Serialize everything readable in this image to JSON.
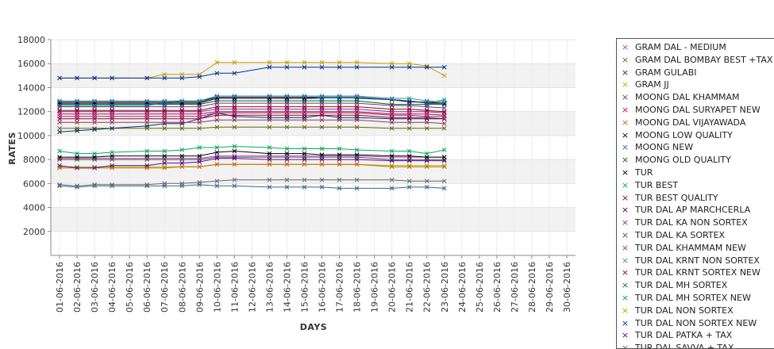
{
  "chart_data": {
    "type": "line",
    "xlabel": "DAYS",
    "ylabel": "RATES",
    "ylim": [
      0,
      18000
    ],
    "yticks": [
      2000,
      4000,
      6000,
      8000,
      10000,
      12000,
      14000,
      16000,
      18000
    ],
    "grid": "alternating horizontal bands",
    "legend_position": "right",
    "categories": [
      "01-06-2016",
      "02-06-2016",
      "03-06-2016",
      "04-06-2016",
      "05-06-2016",
      "06-06-2016",
      "07-06-2016",
      "08-06-2016",
      "09-06-2016",
      "10-06-2016",
      "11-06-2016",
      "12-06-2016",
      "13-06-2016",
      "14-06-2016",
      "15-06-2016",
      "16-06-2016",
      "17-06-2016",
      "18-06-2016",
      "19-06-2016",
      "20-06-2016",
      "21-06-2016",
      "22-06-2016",
      "23-06-2016",
      "24-06-2016",
      "25-06-2016",
      "26-06-2016",
      "27-06-2016",
      "28-06-2016",
      "29-06-2016",
      "30-06-2016"
    ],
    "series": [
      {
        "name": "GRAM DAL - MEDIUM",
        "color": "#cc33cc",
        "values": [
          8100,
          8100,
          8100,
          8100,
          null,
          8100,
          8100,
          8100,
          8100,
          8300,
          8300,
          null,
          8300,
          8300,
          8300,
          8300,
          8300,
          8300,
          null,
          8200,
          8200,
          8200,
          8200,
          null,
          null,
          null,
          null,
          null,
          null,
          null
        ]
      },
      {
        "name": "GRAM DAL BOMBAY BEST +TAX",
        "color": "#666600",
        "values": [
          10600,
          10600,
          10600,
          10600,
          null,
          10600,
          10600,
          10600,
          10600,
          10700,
          10700,
          null,
          10700,
          10700,
          10700,
          10700,
          10700,
          10700,
          null,
          10600,
          10600,
          10600,
          10600,
          null,
          null,
          null,
          null,
          null,
          null,
          null
        ]
      },
      {
        "name": "GRAM GULABI",
        "color": "#003366",
        "values": [
          10300,
          10400,
          10500,
          10600,
          null,
          10800,
          11000,
          11000,
          11400,
          11900,
          11600,
          null,
          11500,
          11500,
          11500,
          11700,
          11500,
          11500,
          null,
          11400,
          11400,
          11400,
          11400,
          null,
          null,
          null,
          null,
          null,
          null,
          null
        ]
      },
      {
        "name": "GRAM JJ",
        "color": "#99cc00",
        "values": [
          7400,
          7400,
          7400,
          7400,
          null,
          7400,
          7400,
          7400,
          7400,
          7600,
          7600,
          null,
          7600,
          7600,
          7600,
          7600,
          7600,
          7600,
          null,
          7500,
          7500,
          7500,
          7500,
          null,
          null,
          null,
          null,
          null,
          null,
          null
        ]
      },
      {
        "name": "MOONG DAL KHAMMAM",
        "color": "#663399",
        "values": [
          12000,
          12000,
          12000,
          12000,
          null,
          12000,
          12000,
          12000,
          12000,
          12200,
          12200,
          null,
          12200,
          12200,
          12200,
          12200,
          12200,
          12200,
          null,
          12000,
          12000,
          12000,
          11900,
          null,
          null,
          null,
          null,
          null,
          null,
          null
        ]
      },
      {
        "name": "MOONG DAL SURYAPET NEW",
        "color": "#cc0066",
        "values": [
          11800,
          11800,
          11800,
          11800,
          null,
          11800,
          11800,
          11800,
          11800,
          12000,
          12000,
          null,
          12000,
          12000,
          12000,
          12000,
          12000,
          12000,
          null,
          11800,
          11800,
          11800,
          11700,
          null,
          null,
          null,
          null,
          null,
          null,
          null
        ]
      },
      {
        "name": "MOONG DAL VIJAYAWADA",
        "color": "#cc6600",
        "values": [
          7300,
          7300,
          7300,
          7300,
          null,
          7300,
          7300,
          7400,
          7400,
          7600,
          7600,
          null,
          7600,
          7600,
          7600,
          7600,
          7600,
          7600,
          null,
          7400,
          7400,
          7400,
          7400,
          null,
          null,
          null,
          null,
          null,
          null,
          null
        ]
      },
      {
        "name": "MOONG LOW QUALITY",
        "color": "#000000",
        "values": [
          8200,
          8200,
          8200,
          8300,
          null,
          8300,
          8300,
          8300,
          8300,
          8600,
          8700,
          null,
          8500,
          8500,
          8500,
          8400,
          8400,
          8400,
          null,
          8300,
          8300,
          8200,
          8200,
          null,
          null,
          null,
          null,
          null,
          null,
          null
        ]
      },
      {
        "name": "MOONG NEW",
        "color": "#336699",
        "values": [
          5800,
          5700,
          5800,
          5800,
          null,
          5800,
          5800,
          5800,
          5900,
          5800,
          5800,
          null,
          5700,
          5700,
          5700,
          5700,
          5600,
          5600,
          null,
          5600,
          5700,
          5700,
          5600,
          null,
          null,
          null,
          null,
          null,
          null,
          null
        ]
      },
      {
        "name": "MOONG OLD QUALITY",
        "color": "#006600",
        "values": [
          12600,
          12600,
          12600,
          12600,
          null,
          12600,
          12600,
          12600,
          12600,
          12900,
          12900,
          null,
          12900,
          12900,
          12900,
          12900,
          12900,
          12900,
          null,
          12600,
          12600,
          12600,
          12600,
          null,
          null,
          null,
          null,
          null,
          null,
          null
        ]
      },
      {
        "name": "TUR",
        "color": "#000000",
        "values": [
          12700,
          12700,
          12700,
          12700,
          null,
          12700,
          12700,
          12700,
          12700,
          13100,
          13100,
          null,
          13100,
          13100,
          13100,
          13100,
          13100,
          13100,
          null,
          13000,
          12900,
          12700,
          12700,
          null,
          null,
          null,
          null,
          null,
          null,
          null
        ]
      },
      {
        "name": "TUR BEST",
        "color": "#009999",
        "values": [
          12500,
          12500,
          12500,
          12500,
          null,
          12500,
          12700,
          12900,
          12900,
          13200,
          13200,
          null,
          13200,
          13200,
          13200,
          13100,
          13100,
          13100,
          null,
          13000,
          12900,
          12700,
          13000,
          null,
          null,
          null,
          null,
          null,
          null,
          null
        ]
      },
      {
        "name": "TUR BEST QUALITY",
        "color": "#990033",
        "values": [
          11400,
          11400,
          11400,
          11400,
          null,
          11400,
          11400,
          11400,
          11400,
          11700,
          11700,
          null,
          11700,
          11700,
          11700,
          11700,
          11700,
          11700,
          null,
          11500,
          11500,
          11500,
          11400,
          null,
          null,
          null,
          null,
          null,
          null,
          null
        ]
      },
      {
        "name": "TUR DAL AP MARCHCERLA",
        "color": "#330066",
        "values": [
          12800,
          12800,
          12800,
          12800,
          null,
          12800,
          12800,
          12800,
          12800,
          13200,
          13200,
          null,
          13200,
          13200,
          13200,
          13200,
          13200,
          13200,
          null,
          13000,
          12800,
          12800,
          12700,
          null,
          null,
          null,
          null,
          null,
          null,
          null
        ]
      },
      {
        "name": "TUR DAL KA NON SORTEX",
        "color": "#993366",
        "values": [
          11100,
          11100,
          11100,
          11100,
          null,
          11100,
          11100,
          11100,
          11100,
          11300,
          11300,
          null,
          11300,
          11300,
          11300,
          11300,
          11300,
          11300,
          null,
          11100,
          11100,
          11100,
          11000,
          null,
          null,
          null,
          null,
          null,
          null,
          null
        ]
      },
      {
        "name": "TUR DAL KA SORTEX",
        "color": "#663399",
        "values": [
          12400,
          12400,
          12400,
          12400,
          null,
          12400,
          12400,
          12400,
          12400,
          12700,
          12700,
          null,
          12700,
          12700,
          12700,
          12700,
          12700,
          12700,
          null,
          12500,
          12500,
          12400,
          12300,
          null,
          null,
          null,
          null,
          null,
          null,
          null
        ]
      },
      {
        "name": "TUR DAL KHAMMAM NEW",
        "color": "#993366",
        "values": [
          11600,
          11600,
          11600,
          11600,
          null,
          11600,
          11600,
          11600,
          11600,
          11900,
          11900,
          null,
          11900,
          11900,
          11900,
          11900,
          11900,
          11900,
          null,
          11700,
          11700,
          11600,
          11600,
          null,
          null,
          null,
          null,
          null,
          null,
          null
        ]
      },
      {
        "name": "TUR DAL KRNT NON SORTEX",
        "color": "#339999",
        "values": [
          12900,
          12900,
          12900,
          12900,
          null,
          12900,
          12900,
          12900,
          12900,
          13300,
          13300,
          null,
          13300,
          13300,
          13300,
          13300,
          13300,
          13300,
          null,
          13100,
          13100,
          12900,
          12800,
          null,
          null,
          null,
          null,
          null,
          null,
          null
        ]
      },
      {
        "name": "TUR DAL KRNT SORTEX NEW",
        "color": "#990000",
        "values": [
          12100,
          12100,
          12100,
          12100,
          null,
          12100,
          12100,
          12100,
          12100,
          12400,
          12400,
          null,
          12400,
          12400,
          12400,
          12400,
          12400,
          12400,
          null,
          12200,
          12200,
          12100,
          12000,
          null,
          null,
          null,
          null,
          null,
          null,
          null
        ]
      },
      {
        "name": "TUR DAL MH SORTEX",
        "color": "#336633",
        "values": [
          8000,
          8000,
          8000,
          8000,
          null,
          8000,
          8000,
          8000,
          8000,
          8200,
          8200,
          null,
          8200,
          8200,
          8200,
          8200,
          8200,
          8200,
          null,
          8000,
          8000,
          8000,
          8000,
          null,
          null,
          null,
          null,
          null,
          null,
          null
        ]
      },
      {
        "name": "TUR DAL MH SORTEX NEW",
        "color": "#00aa66",
        "values": [
          8700,
          8500,
          8500,
          8600,
          null,
          8700,
          8700,
          8800,
          9000,
          9000,
          9100,
          null,
          9000,
          8900,
          8900,
          8900,
          8900,
          8800,
          null,
          8700,
          8700,
          8500,
          8800,
          null,
          null,
          null,
          null,
          null,
          null,
          null
        ]
      },
      {
        "name": "TUR DAL NON SORTEX",
        "color": "#cc9900",
        "values": [
          14800,
          14800,
          14800,
          14800,
          null,
          14800,
          15100,
          15100,
          15100,
          16100,
          16100,
          null,
          16100,
          16100,
          16100,
          16100,
          16100,
          16100,
          null,
          16000,
          16000,
          15800,
          15000,
          null,
          null,
          null,
          null,
          null,
          null,
          null
        ]
      },
      {
        "name": "TUR DAL NON SORTEX NEW",
        "color": "#003399",
        "values": [
          14800,
          14800,
          14800,
          14800,
          null,
          14800,
          14800,
          14800,
          14900,
          15200,
          15200,
          null,
          15700,
          15700,
          15700,
          15700,
          15700,
          15700,
          null,
          15700,
          15700,
          15700,
          15700,
          null,
          null,
          null,
          null,
          null,
          null,
          null
        ]
      },
      {
        "name": "TUR DAL PATKA + TAX",
        "color": "#660099",
        "values": [
          7500,
          7300,
          7300,
          7500,
          null,
          7500,
          7700,
          7700,
          7800,
          8100,
          8100,
          null,
          8000,
          8000,
          8000,
          8000,
          8000,
          8000,
          null,
          7900,
          7900,
          7900,
          7900,
          null,
          null,
          null,
          null,
          null,
          null,
          null
        ]
      },
      {
        "name": "TUR DAL SAVVA + TAX",
        "color": "#666666",
        "values": [
          5900,
          5800,
          5900,
          5900,
          null,
          5900,
          6000,
          6000,
          6100,
          6200,
          6300,
          null,
          6300,
          6300,
          6300,
          6300,
          6300,
          6300,
          null,
          6300,
          6200,
          6200,
          6200,
          null,
          null,
          null,
          null,
          null,
          null,
          null
        ]
      }
    ]
  }
}
